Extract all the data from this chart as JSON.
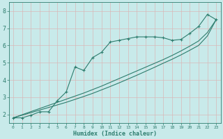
{
  "xlabel": "Humidex (Indice chaleur)",
  "bg_color": "#c8eaea",
  "line_color": "#2e7d6e",
  "grid_color": "#d8b8b8",
  "x_humidex": [
    0,
    1,
    2,
    3,
    4,
    5,
    6,
    7,
    8,
    9,
    10,
    11,
    12,
    13,
    14,
    15,
    16,
    17,
    18,
    19,
    20,
    21,
    22,
    23
  ],
  "y_jagged": [
    1.8,
    1.8,
    1.95,
    2.15,
    2.15,
    2.8,
    3.3,
    4.75,
    4.55,
    5.3,
    5.6,
    6.2,
    6.3,
    6.4,
    6.5,
    6.5,
    6.5,
    6.45,
    6.3,
    6.35,
    6.7,
    7.1,
    7.8,
    7.5
  ],
  "y_linear1": [
    1.8,
    1.95,
    2.1,
    2.25,
    2.4,
    2.55,
    2.7,
    2.87,
    3.04,
    3.22,
    3.42,
    3.62,
    3.83,
    4.05,
    4.27,
    4.5,
    4.73,
    4.97,
    5.2,
    5.45,
    5.72,
    6.0,
    6.55,
    7.5
  ],
  "y_linear2": [
    1.8,
    1.98,
    2.16,
    2.34,
    2.52,
    2.7,
    2.88,
    3.06,
    3.24,
    3.44,
    3.64,
    3.86,
    4.08,
    4.3,
    4.52,
    4.74,
    4.96,
    5.18,
    5.42,
    5.68,
    5.96,
    6.26,
    6.75,
    7.5
  ],
  "xlim": [
    -0.5,
    23.5
  ],
  "ylim": [
    1.5,
    8.5
  ],
  "yticks": [
    2,
    3,
    4,
    5,
    6,
    7,
    8
  ],
  "xticks": [
    0,
    1,
    2,
    3,
    4,
    5,
    6,
    7,
    8,
    9,
    10,
    11,
    12,
    13,
    14,
    15,
    16,
    17,
    18,
    19,
    20,
    21,
    22,
    23
  ],
  "xtick_labels": [
    "0",
    "1",
    "2",
    "3",
    "4",
    "5",
    "6",
    "7",
    "8",
    "9",
    "10",
    "11",
    "12",
    "13",
    "14",
    "15",
    "16",
    "17",
    "18",
    "19",
    "20",
    "21",
    "22",
    "23"
  ]
}
